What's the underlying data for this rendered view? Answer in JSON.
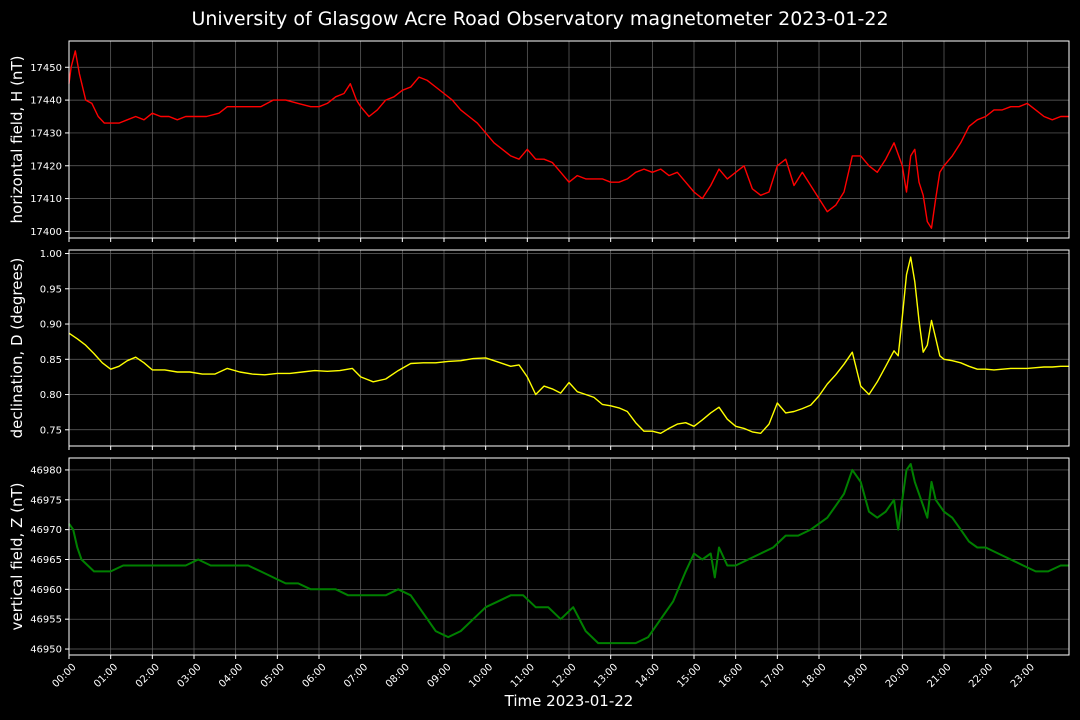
{
  "figure": {
    "title": "University of Glasgow Acre Road Observatory magnetometer 2023-01-22",
    "xlabel": "Time 2023-01-22"
  },
  "colors": {
    "background": "#000000",
    "grid": "#666666",
    "axes": "#ffffff"
  },
  "chart_data": [
    {
      "type": "line",
      "ylabel": "horizontal field, H (nT)",
      "color": "#ff0000",
      "ylim": [
        17398,
        17458
      ],
      "yticks": [
        17400,
        17410,
        17420,
        17430,
        17440,
        17450
      ],
      "xlim": [
        0,
        24
      ],
      "xticks": [
        "00:00",
        "01:00",
        "02:00",
        "03:00",
        "04:00",
        "05:00",
        "06:00",
        "07:00",
        "08:00",
        "09:00",
        "10:00",
        "11:00",
        "12:00",
        "13:00",
        "14:00",
        "15:00",
        "16:00",
        "17:00",
        "18:00",
        "19:00",
        "20:00",
        "21:00",
        "22:00",
        "23:00"
      ],
      "x": [
        0,
        0.05,
        0.15,
        0.25,
        0.4,
        0.55,
        0.7,
        0.85,
        1.0,
        1.2,
        1.4,
        1.6,
        1.8,
        2.0,
        2.2,
        2.4,
        2.6,
        2.8,
        3.0,
        3.3,
        3.6,
        3.8,
        4.0,
        4.3,
        4.6,
        4.9,
        5.2,
        5.5,
        5.8,
        6.0,
        6.2,
        6.4,
        6.6,
        6.75,
        6.9,
        7.0,
        7.2,
        7.4,
        7.6,
        7.8,
        8.0,
        8.2,
        8.4,
        8.6,
        8.8,
        9.0,
        9.2,
        9.4,
        9.6,
        9.8,
        10.0,
        10.2,
        10.4,
        10.6,
        10.8,
        11.0,
        11.2,
        11.4,
        11.6,
        11.8,
        12.0,
        12.2,
        12.4,
        12.6,
        12.8,
        13.0,
        13.2,
        13.4,
        13.6,
        13.8,
        14.0,
        14.2,
        14.4,
        14.6,
        14.8,
        15.0,
        15.2,
        15.4,
        15.6,
        15.8,
        16.0,
        16.2,
        16.4,
        16.6,
        16.8,
        17.0,
        17.2,
        17.4,
        17.6,
        17.8,
        18.0,
        18.2,
        18.4,
        18.6,
        18.8,
        19.0,
        19.2,
        19.4,
        19.6,
        19.8,
        20.0,
        20.1,
        20.2,
        20.3,
        20.4,
        20.5,
        20.6,
        20.7,
        20.8,
        20.9,
        21.0,
        21.2,
        21.4,
        21.6,
        21.8,
        22.0,
        22.2,
        22.4,
        22.6,
        22.8,
        23.0,
        23.2,
        23.4,
        23.6,
        23.8,
        24.0
      ],
      "values": [
        17445,
        17450,
        17455,
        17448,
        17440,
        17439,
        17435,
        17433,
        17433,
        17433,
        17434,
        17435,
        17434,
        17436,
        17435,
        17435,
        17434,
        17435,
        17435,
        17435,
        17436,
        17438,
        17438,
        17438,
        17438,
        17440,
        17440,
        17439,
        17438,
        17438,
        17439,
        17441,
        17442,
        17445,
        17440,
        17438,
        17435,
        17437,
        17440,
        17441,
        17443,
        17444,
        17447,
        17446,
        17444,
        17442,
        17440,
        17437,
        17435,
        17433,
        17430,
        17427,
        17425,
        17423,
        17422,
        17425,
        17422,
        17422,
        17421,
        17418,
        17415,
        17417,
        17416,
        17416,
        17416,
        17415,
        17415,
        17416,
        17418,
        17419,
        17418,
        17419,
        17417,
        17418,
        17415,
        17412,
        17410,
        17414,
        17419,
        17416,
        17418,
        17420,
        17413,
        17411,
        17412,
        17420,
        17422,
        17414,
        17418,
        17414,
        17410,
        17406,
        17408,
        17412,
        17423,
        17423,
        17420,
        17418,
        17422,
        17427,
        17420,
        17412,
        17423,
        17425,
        17415,
        17411,
        17403,
        17401,
        17410,
        17418,
        17420,
        17423,
        17427,
        17432,
        17434,
        17435,
        17437,
        17437,
        17438,
        17438,
        17439,
        17437,
        17435,
        17434,
        17435,
        17435
      ]
    },
    {
      "type": "line",
      "ylabel": "declination, D (degrees)",
      "color": "#ffff00",
      "ylim": [
        0.727,
        1.005
      ],
      "yticks": [
        "0.75",
        "0.80",
        "0.85",
        "0.90",
        "0.95",
        "1.00"
      ],
      "xlim": [
        0,
        24
      ],
      "xticks": [
        "00:00",
        "01:00",
        "02:00",
        "03:00",
        "04:00",
        "05:00",
        "06:00",
        "07:00",
        "08:00",
        "09:00",
        "10:00",
        "11:00",
        "12:00",
        "13:00",
        "14:00",
        "15:00",
        "16:00",
        "17:00",
        "18:00",
        "19:00",
        "20:00",
        "21:00",
        "22:00",
        "23:00"
      ],
      "x": [
        0,
        0.2,
        0.4,
        0.6,
        0.8,
        1.0,
        1.2,
        1.4,
        1.6,
        1.8,
        2.0,
        2.3,
        2.6,
        2.9,
        3.2,
        3.5,
        3.8,
        4.1,
        4.4,
        4.7,
        5.0,
        5.3,
        5.6,
        5.9,
        6.2,
        6.5,
        6.8,
        7.0,
        7.3,
        7.6,
        7.9,
        8.2,
        8.5,
        8.8,
        9.1,
        9.4,
        9.7,
        10.0,
        10.3,
        10.6,
        10.8,
        11.0,
        11.2,
        11.4,
        11.6,
        11.8,
        12.0,
        12.2,
        12.4,
        12.6,
        12.8,
        13.0,
        13.2,
        13.4,
        13.6,
        13.8,
        14.0,
        14.2,
        14.4,
        14.6,
        14.8,
        15.0,
        15.2,
        15.4,
        15.6,
        15.8,
        16.0,
        16.2,
        16.4,
        16.6,
        16.8,
        17.0,
        17.2,
        17.4,
        17.6,
        17.8,
        18.0,
        18.2,
        18.4,
        18.6,
        18.8,
        19.0,
        19.2,
        19.4,
        19.6,
        19.8,
        19.9,
        20.0,
        20.1,
        20.2,
        20.3,
        20.4,
        20.5,
        20.6,
        20.7,
        20.8,
        20.9,
        21.0,
        21.2,
        21.4,
        21.6,
        21.8,
        22.0,
        22.2,
        22.4,
        22.6,
        22.8,
        23.0,
        23.2,
        23.4,
        23.6,
        23.8,
        24.0
      ],
      "values": [
        0.887,
        0.879,
        0.87,
        0.858,
        0.845,
        0.836,
        0.84,
        0.848,
        0.853,
        0.845,
        0.835,
        0.835,
        0.832,
        0.832,
        0.829,
        0.829,
        0.837,
        0.832,
        0.829,
        0.828,
        0.83,
        0.83,
        0.832,
        0.834,
        0.833,
        0.834,
        0.837,
        0.825,
        0.818,
        0.822,
        0.834,
        0.844,
        0.845,
        0.845,
        0.847,
        0.848,
        0.851,
        0.852,
        0.846,
        0.84,
        0.842,
        0.825,
        0.8,
        0.812,
        0.808,
        0.802,
        0.817,
        0.804,
        0.8,
        0.796,
        0.786,
        0.784,
        0.781,
        0.776,
        0.76,
        0.748,
        0.748,
        0.745,
        0.752,
        0.758,
        0.76,
        0.755,
        0.764,
        0.774,
        0.782,
        0.765,
        0.755,
        0.752,
        0.747,
        0.745,
        0.758,
        0.788,
        0.774,
        0.776,
        0.78,
        0.785,
        0.798,
        0.815,
        0.828,
        0.843,
        0.86,
        0.812,
        0.8,
        0.818,
        0.84,
        0.862,
        0.855,
        0.91,
        0.97,
        0.995,
        0.96,
        0.905,
        0.86,
        0.87,
        0.905,
        0.88,
        0.855,
        0.85,
        0.848,
        0.845,
        0.84,
        0.836,
        0.836,
        0.835,
        0.836,
        0.837,
        0.837,
        0.837,
        0.838,
        0.839,
        0.839,
        0.84,
        0.84
      ]
    },
    {
      "type": "line",
      "ylabel": "vertical field, Z (nT)",
      "color": "#008000",
      "ylim": [
        46949,
        46982
      ],
      "yticks": [
        46950,
        46955,
        46960,
        46965,
        46970,
        46975,
        46980
      ],
      "xlim": [
        0,
        24
      ],
      "xticks": [
        "00:00",
        "01:00",
        "02:00",
        "03:00",
        "04:00",
        "05:00",
        "06:00",
        "07:00",
        "08:00",
        "09:00",
        "10:00",
        "11:00",
        "12:00",
        "13:00",
        "14:00",
        "15:00",
        "16:00",
        "17:00",
        "18:00",
        "19:00",
        "20:00",
        "21:00",
        "22:00",
        "23:00"
      ],
      "x": [
        0,
        0.1,
        0.2,
        0.3,
        0.45,
        0.6,
        0.8,
        1.0,
        1.3,
        1.6,
        1.9,
        2.2,
        2.5,
        2.8,
        3.1,
        3.4,
        3.7,
        4.0,
        4.3,
        4.6,
        4.9,
        5.2,
        5.5,
        5.8,
        6.1,
        6.4,
        6.7,
        7.0,
        7.3,
        7.6,
        7.9,
        8.2,
        8.5,
        8.8,
        9.1,
        9.4,
        9.7,
        10.0,
        10.3,
        10.6,
        10.9,
        11.2,
        11.5,
        11.8,
        12.1,
        12.4,
        12.7,
        13.0,
        13.3,
        13.6,
        13.9,
        14.2,
        14.5,
        14.8,
        15.0,
        15.2,
        15.4,
        15.5,
        15.6,
        15.8,
        16.0,
        16.3,
        16.6,
        16.9,
        17.2,
        17.5,
        17.8,
        18.0,
        18.2,
        18.4,
        18.6,
        18.8,
        19.0,
        19.2,
        19.4,
        19.6,
        19.8,
        19.9,
        20.0,
        20.1,
        20.2,
        20.3,
        20.4,
        20.5,
        20.6,
        20.7,
        20.8,
        21.0,
        21.2,
        21.4,
        21.6,
        21.8,
        22.0,
        22.3,
        22.6,
        22.9,
        23.2,
        23.5,
        23.8,
        24.0
      ],
      "values": [
        46971,
        46970,
        46967,
        46965,
        46964,
        46963,
        46963,
        46963,
        46964,
        46964,
        46964,
        46964,
        46964,
        46964,
        46965,
        46964,
        46964,
        46964,
        46964,
        46963,
        46962,
        46961,
        46961,
        46960,
        46960,
        46960,
        46959,
        46959,
        46959,
        46959,
        46960,
        46959,
        46956,
        46953,
        46952,
        46953,
        46955,
        46957,
        46958,
        46959,
        46959,
        46957,
        46957,
        46955,
        46957,
        46953,
        46951,
        46951,
        46951,
        46951,
        46952,
        46955,
        46958,
        46963,
        46966,
        46965,
        46966,
        46962,
        46967,
        46964,
        46964,
        46965,
        46966,
        46967,
        46969,
        46969,
        46970,
        46971,
        46972,
        46974,
        46976,
        46980,
        46978,
        46973,
        46972,
        46973,
        46975,
        46970,
        46975,
        46980,
        46981,
        46978,
        46976,
        46974,
        46972,
        46978,
        46975,
        46973,
        46972,
        46970,
        46968,
        46967,
        46967,
        46966,
        46965,
        46964,
        46963,
        46963,
        46964,
        46964
      ]
    }
  ]
}
